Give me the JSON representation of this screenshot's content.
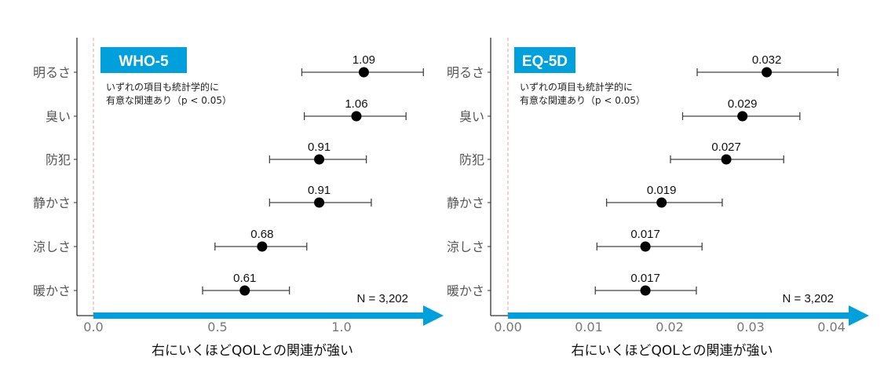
{
  "chart_data": [
    {
      "type": "forest",
      "title": "WHO-5",
      "note_lines": [
        "いずれの項目も統計学的に",
        "有意な関連あり（p < 0.05）"
      ],
      "n_label": "N = 3,202",
      "xlabel": "右にいくほどQOLとの関連が強い",
      "xlim": [
        0,
        1.4
      ],
      "xticks": [
        0,
        0.5,
        1.0
      ],
      "xtick_labels": [
        "0.0",
        "0.5",
        "1.0"
      ],
      "reference_line": 0,
      "categories": [
        "明るさ",
        "臭い",
        "防犯",
        "静かさ",
        "涼しさ",
        "暖かさ"
      ],
      "estimates": [
        1.09,
        1.06,
        0.91,
        0.91,
        0.68,
        0.61
      ],
      "labels": [
        "1.09",
        "1.06",
        "0.91",
        "0.91",
        "0.68",
        "0.61"
      ],
      "ci_low": [
        0.84,
        0.85,
        0.71,
        0.71,
        0.49,
        0.44
      ],
      "ci_high": [
        1.33,
        1.26,
        1.1,
        1.12,
        0.86,
        0.79
      ]
    },
    {
      "type": "forest",
      "title": "EQ-5D",
      "note_lines": [
        "いずれの項目も統計学的に",
        "有意な関連あり（p < 0.05）"
      ],
      "n_label": "N = 3,202",
      "xlabel": "右にいくほどQOLとの関連が強い",
      "xlim": [
        0,
        0.044
      ],
      "xticks": [
        0,
        0.01,
        0.02,
        0.03,
        0.04
      ],
      "xtick_labels": [
        "0.00",
        "0.01",
        "0.02",
        "0.03",
        "0.04"
      ],
      "reference_line": 0,
      "categories": [
        "明るさ",
        "臭い",
        "防犯",
        "静かさ",
        "涼しさ",
        "暖かさ"
      ],
      "estimates": [
        0.032,
        0.029,
        0.027,
        0.019,
        0.017,
        0.017
      ],
      "labels": [
        "0.032",
        "0.029",
        "0.027",
        "0.019",
        "0.017",
        "0.017"
      ],
      "ci_low": [
        0.0234,
        0.0216,
        0.0201,
        0.0122,
        0.011,
        0.0108
      ],
      "ci_high": [
        0.0408,
        0.0361,
        0.0341,
        0.0265,
        0.024,
        0.0233
      ]
    }
  ],
  "colors": {
    "accent": "#00a0dc",
    "point": "#000000",
    "axis": "#333333",
    "reference": "#e0a0a0"
  }
}
